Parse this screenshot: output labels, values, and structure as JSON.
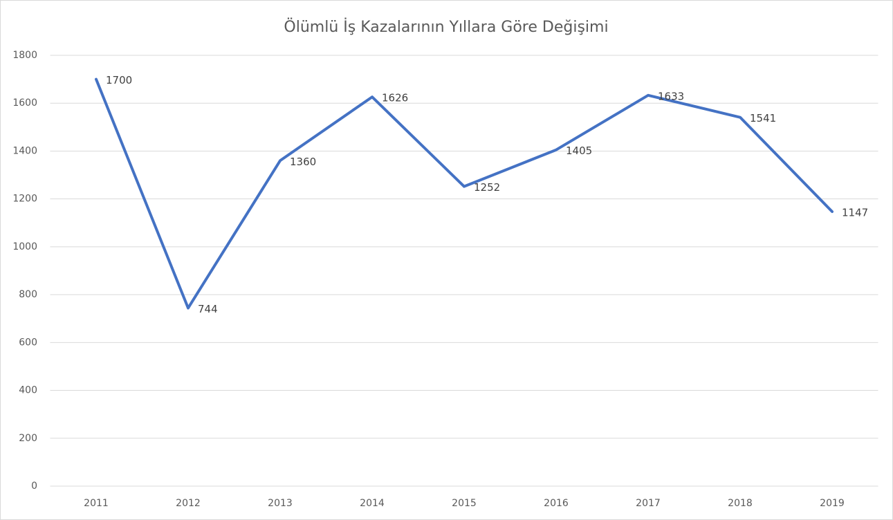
{
  "chart_data": {
    "type": "line",
    "title": "Ölümlü İş Kazalarının Yıllara Göre Değişimi",
    "categories": [
      "2011",
      "2012",
      "2013",
      "2014",
      "2015",
      "2016",
      "2017",
      "2018",
      "2019"
    ],
    "values": [
      1700,
      744,
      1360,
      1626,
      1252,
      1405,
      1633,
      1541,
      1147
    ],
    "color": "#4472c4",
    "ylim": [
      0,
      1800
    ],
    "yticks": [
      0,
      200,
      400,
      600,
      800,
      1000,
      1200,
      1400,
      1600,
      1800
    ],
    "grid": true,
    "data_labels": true
  }
}
